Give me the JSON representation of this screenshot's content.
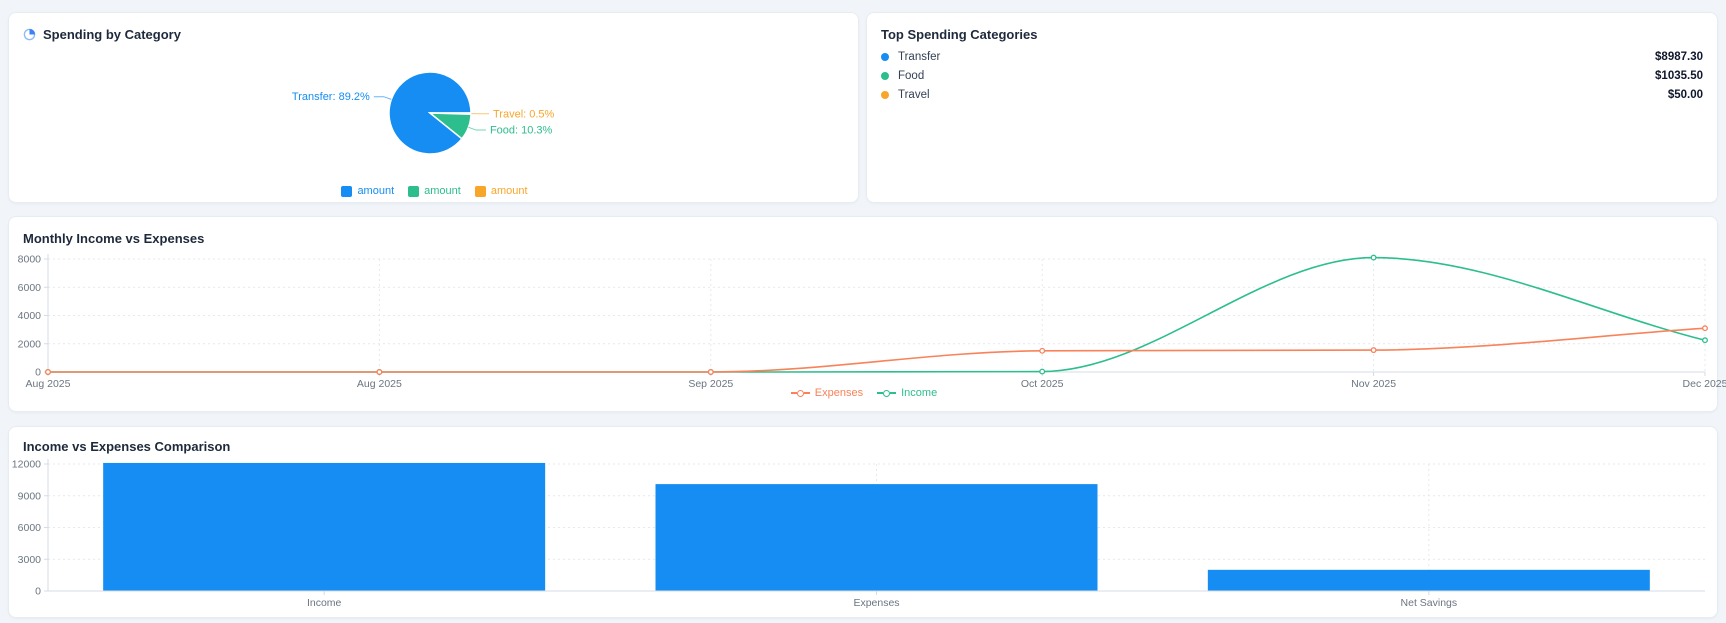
{
  "cards": {
    "spending": {
      "title": "Spending by Category"
    },
    "top_categories": {
      "title": "Top Spending Categories",
      "items": [
        {
          "label": "Transfer",
          "amount": "$8987.30",
          "color": "#158df2"
        },
        {
          "label": "Food",
          "amount": "$1035.50",
          "color": "#2dbe8d"
        },
        {
          "label": "Travel",
          "amount": "$50.00",
          "color": "#f8a62a"
        }
      ]
    },
    "monthly": {
      "title": "Monthly Income vs Expenses"
    },
    "comparison": {
      "title": "Income vs Expenses Comparison"
    }
  },
  "colors": {
    "blue": "#158df2",
    "teal": "#2dbe8d",
    "amber": "#f8a62a",
    "coral": "#f8825a"
  },
  "chart_data": [
    {
      "type": "pie",
      "title": "Spending by Category",
      "slices": [
        {
          "name": "Transfer",
          "pct": 89.2,
          "color": "#158df2",
          "label": "Transfer: 89.2%"
        },
        {
          "name": "Travel",
          "pct": 0.5,
          "color": "#f8a62a",
          "label": "Travel: 0.5%"
        },
        {
          "name": "Food",
          "pct": 10.3,
          "color": "#2dbe8d",
          "label": "Food: 10.3%"
        }
      ],
      "legend": [
        {
          "label": "amount",
          "color": "#158df2"
        },
        {
          "label": "amount",
          "color": "#2dbe8d"
        },
        {
          "label": "amount",
          "color": "#f8a62a"
        }
      ],
      "legend_position": "bottom"
    },
    {
      "type": "line",
      "title": "Monthly Income vs Expenses",
      "x": [
        "Aug 2025",
        "Aug 2025",
        "Sep 2025",
        "Oct 2025",
        "Nov 2025",
        "Dec 2025"
      ],
      "series": [
        {
          "name": "Expenses",
          "color": "#f8825a",
          "values": [
            0,
            0,
            0,
            1500,
            1550,
            3100
          ]
        },
        {
          "name": "Income",
          "color": "#2dbe8d",
          "values": [
            0,
            0,
            0,
            30,
            8100,
            2250
          ]
        }
      ],
      "ylim": [
        0,
        8000
      ],
      "yticks": [
        0,
        2000,
        4000,
        6000,
        8000
      ],
      "grid": "dotted",
      "smooth": true,
      "legend_position": "bottom"
    },
    {
      "type": "bar",
      "title": "Income vs Expenses Comparison",
      "categories": [
        "Income",
        "Expenses",
        "Net Savings"
      ],
      "values": [
        12100,
        10100,
        2000
      ],
      "bar_color": "#158df2",
      "ylim": [
        0,
        12000
      ],
      "yticks": [
        0,
        3000,
        6000,
        9000,
        12000
      ],
      "grid": "dotted"
    }
  ]
}
